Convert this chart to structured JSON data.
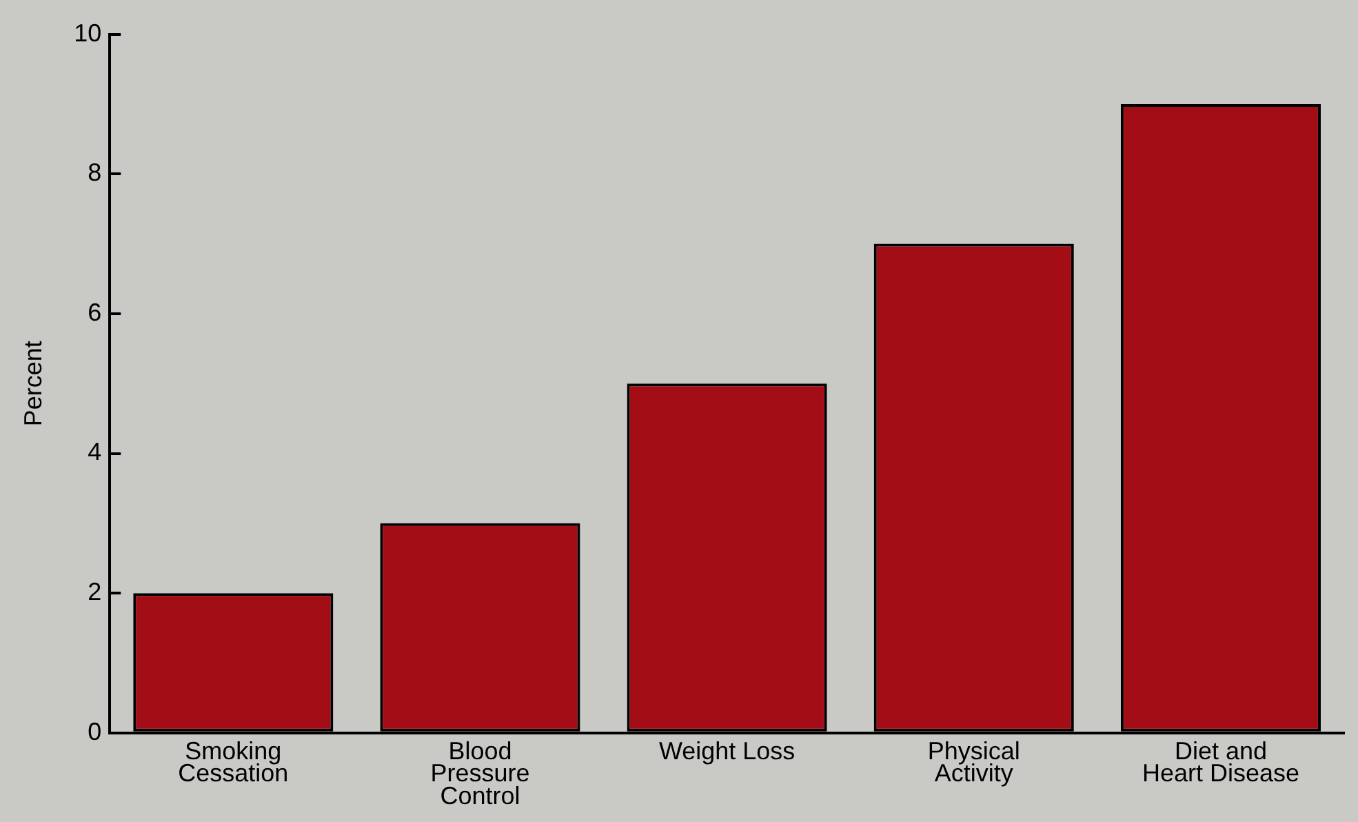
{
  "chart_data": {
    "type": "bar",
    "ylabel": "Percent",
    "categories": [
      "Smoking Cessation",
      "Blood Pressure Control",
      "Weight Loss",
      "Physical Activity",
      "Diet and Heart Disease"
    ],
    "values": [
      2,
      3,
      5,
      7,
      9
    ],
    "color": "#a30d16",
    "ylim": [
      0,
      10
    ],
    "yticks": [
      0,
      2,
      4,
      6,
      8,
      10
    ],
    "grid": false,
    "legend": false
  }
}
